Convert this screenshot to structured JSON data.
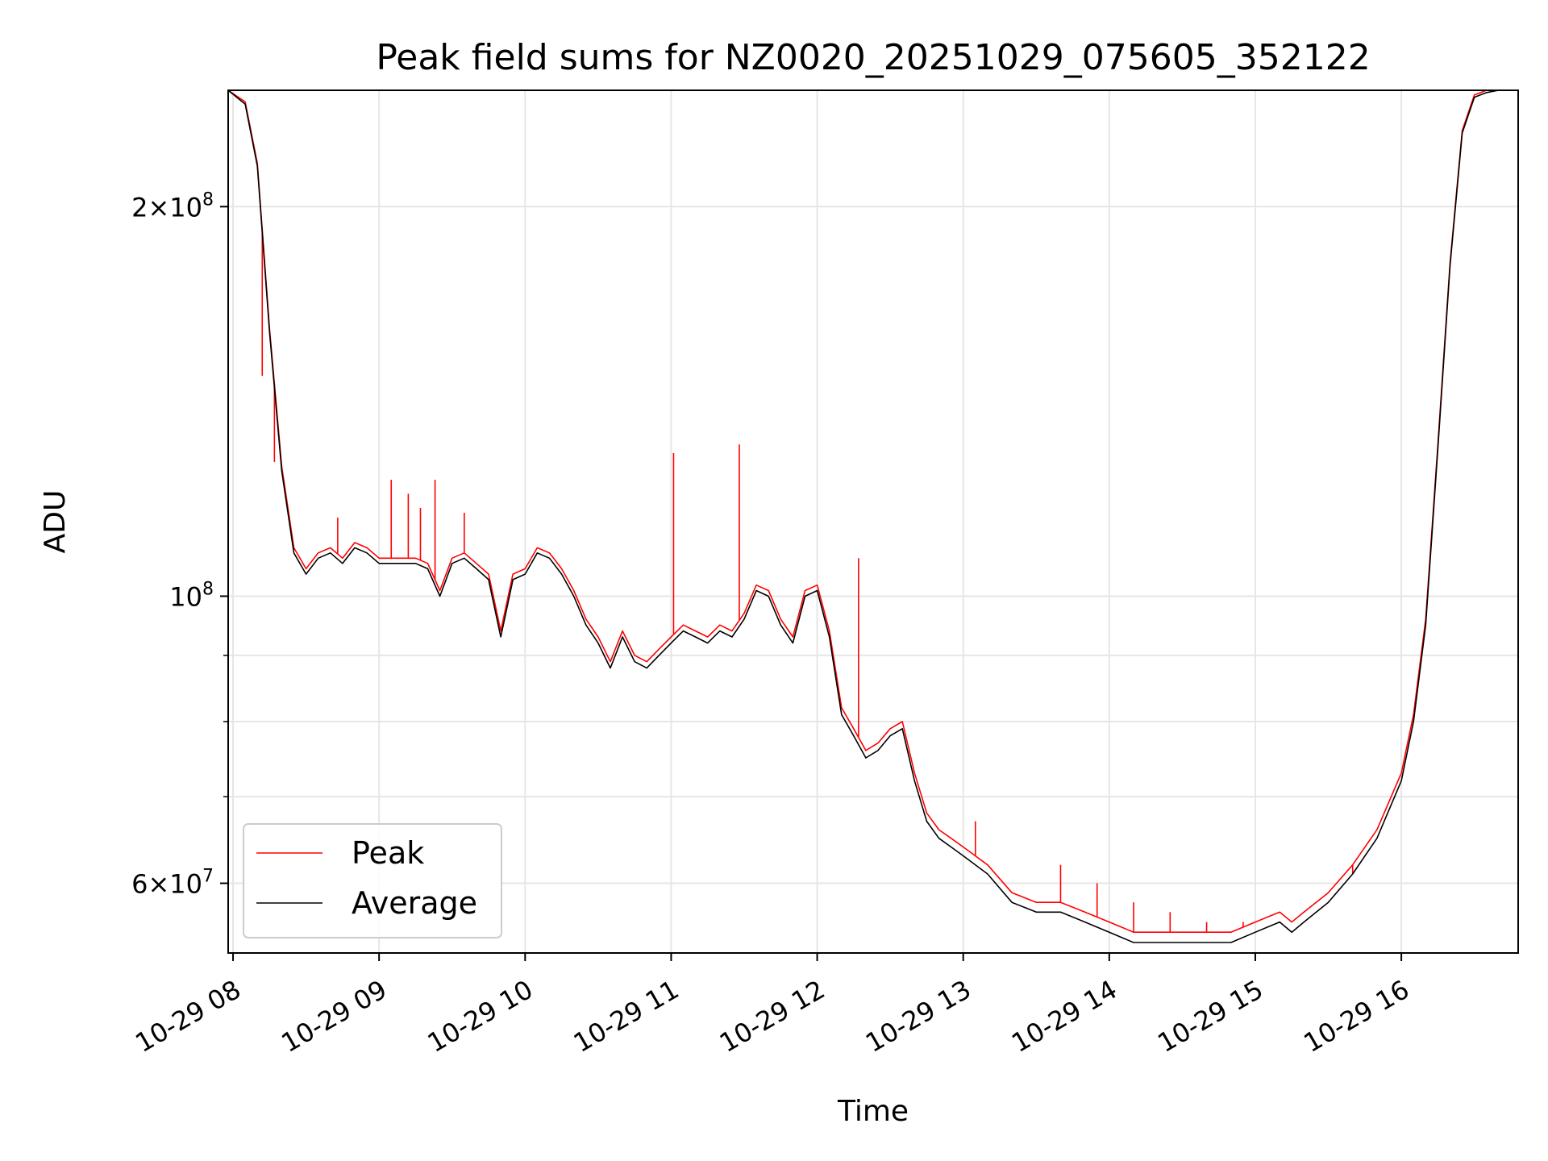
{
  "chart_data": {
    "type": "line",
    "title": "Peak field sums for NZ0020_20251029_075605_352122",
    "xlabel": "Time",
    "ylabel": "ADU",
    "yscale": "log",
    "ylim": [
      53000000,
      246000000
    ],
    "xlim": [
      "2025-10-29 07:58",
      "2025-10-29 16:48"
    ],
    "grid": true,
    "legend_position": "lower-left",
    "x_ticks": [
      "10-29 08",
      "10-29 09",
      "10-29 10",
      "10-29 11",
      "10-29 12",
      "10-29 13",
      "10-29 14",
      "10-29 15",
      "10-29 16"
    ],
    "y_ticks_major": [
      {
        "value": 100000000,
        "mantissa": "",
        "exponent": "8"
      },
      {
        "value": 200000000,
        "mantissa": "2",
        "exponent": "8"
      },
      {
        "value": 60000000,
        "mantissa": "6",
        "exponent": "7"
      }
    ],
    "y_ticks_minor": [
      70000000,
      80000000,
      90000000
    ],
    "tick_base": "10",
    "tick_times": "×",
    "x": [
      "07:58",
      "08:05",
      "08:10",
      "08:15",
      "08:20",
      "08:25",
      "08:30",
      "08:35",
      "08:40",
      "08:45",
      "08:50",
      "08:55",
      "09:00",
      "09:05",
      "09:10",
      "09:15",
      "09:20",
      "09:25",
      "09:30",
      "09:35",
      "09:40",
      "09:45",
      "09:50",
      "09:55",
      "10:00",
      "10:05",
      "10:10",
      "10:15",
      "10:20",
      "10:25",
      "10:30",
      "10:35",
      "10:40",
      "10:45",
      "10:50",
      "10:55",
      "11:00",
      "11:05",
      "11:10",
      "11:15",
      "11:20",
      "11:25",
      "11:30",
      "11:35",
      "11:40",
      "11:45",
      "11:50",
      "11:55",
      "12:00",
      "12:05",
      "12:10",
      "12:15",
      "12:20",
      "12:25",
      "12:30",
      "12:35",
      "12:40",
      "12:45",
      "12:50",
      "12:55",
      "13:00",
      "13:10",
      "13:20",
      "13:30",
      "13:40",
      "13:50",
      "14:00",
      "14:10",
      "14:20",
      "14:30",
      "14:40",
      "14:50",
      "15:00",
      "15:10",
      "15:15",
      "15:20",
      "15:30",
      "15:40",
      "15:50",
      "16:00",
      "16:05",
      "16:10",
      "16:15",
      "16:20",
      "16:25",
      "16:30",
      "16:35",
      "16:40",
      "16:45",
      "16:48"
    ],
    "series": [
      {
        "name": "Average",
        "color": "#000000",
        "values": [
          246000000,
          240000000,
          215000000,
          160000000,
          125000000,
          108000000,
          104000000,
          107000000,
          108000000,
          106000000,
          109000000,
          108000000,
          106000000,
          106000000,
          106000000,
          106000000,
          105000000,
          100000000,
          106000000,
          107000000,
          105000000,
          103000000,
          93000000,
          103000000,
          104000000,
          108000000,
          107000000,
          104000000,
          100000000,
          95000000,
          92000000,
          88000000,
          93000000,
          89000000,
          88000000,
          90000000,
          92000000,
          94000000,
          93000000,
          92000000,
          94000000,
          93000000,
          96000000,
          101000000,
          100000000,
          95000000,
          92000000,
          100000000,
          101000000,
          93000000,
          81000000,
          78000000,
          75000000,
          76000000,
          78000000,
          79000000,
          72000000,
          67000000,
          65000000,
          64000000,
          63000000,
          61000000,
          58000000,
          57000000,
          57000000,
          56000000,
          55000000,
          54000000,
          54000000,
          54000000,
          54000000,
          54000000,
          55000000,
          56000000,
          55000000,
          56000000,
          58000000,
          61000000,
          65000000,
          72000000,
          80000000,
          95000000,
          130000000,
          180000000,
          228000000,
          243000000,
          245000000,
          246000000,
          246000000,
          246000000
        ]
      },
      {
        "name": "Peak",
        "color": "#ff0000",
        "values": [
          246000000,
          241000000,
          216000000,
          161000000,
          126000000,
          109000000,
          105000000,
          108000000,
          109000000,
          107000000,
          110000000,
          109000000,
          107000000,
          107000000,
          107000000,
          107000000,
          106000000,
          101000000,
          107000000,
          108000000,
          106000000,
          104000000,
          94000000,
          104000000,
          105000000,
          109000000,
          108000000,
          105000000,
          101000000,
          96000000,
          93000000,
          89000000,
          94000000,
          90000000,
          89000000,
          91000000,
          93000000,
          95000000,
          94000000,
          93000000,
          95000000,
          94000000,
          97000000,
          102000000,
          101000000,
          96000000,
          93000000,
          101000000,
          102000000,
          94000000,
          82000000,
          79000000,
          76000000,
          77000000,
          79000000,
          80000000,
          73000000,
          68000000,
          66000000,
          65000000,
          64000000,
          62000000,
          59000000,
          58000000,
          58000000,
          57000000,
          56000000,
          55000000,
          55000000,
          55000000,
          55000000,
          55000000,
          56000000,
          57000000,
          56000000,
          57000000,
          59000000,
          62000000,
          66000000,
          73000000,
          81000000,
          96000000,
          131000000,
          181000000,
          229000000,
          244000000,
          246000000,
          246000000,
          246000000,
          246000000
        ],
        "spikes": [
          {
            "x": "08:12",
            "y": 148000000
          },
          {
            "x": "08:17",
            "y": 127000000
          },
          {
            "x": "08:43",
            "y": 115000000
          },
          {
            "x": "09:05",
            "y": 123000000
          },
          {
            "x": "09:12",
            "y": 120000000
          },
          {
            "x": "09:17",
            "y": 117000000
          },
          {
            "x": "09:23",
            "y": 123000000
          },
          {
            "x": "09:35",
            "y": 116000000
          },
          {
            "x": "11:01",
            "y": 129000000
          },
          {
            "x": "11:28",
            "y": 131000000
          },
          {
            "x": "12:17",
            "y": 107000000
          },
          {
            "x": "13:05",
            "y": 67000000
          },
          {
            "x": "13:40",
            "y": 62000000
          },
          {
            "x": "13:55",
            "y": 60000000
          },
          {
            "x": "14:10",
            "y": 58000000
          },
          {
            "x": "14:25",
            "y": 57000000
          },
          {
            "x": "14:40",
            "y": 56000000
          },
          {
            "x": "14:55",
            "y": 56000000
          },
          {
            "x": "15:10",
            "y": 57000000
          },
          {
            "x": "15:40",
            "y": 61000000
          }
        ]
      }
    ]
  }
}
